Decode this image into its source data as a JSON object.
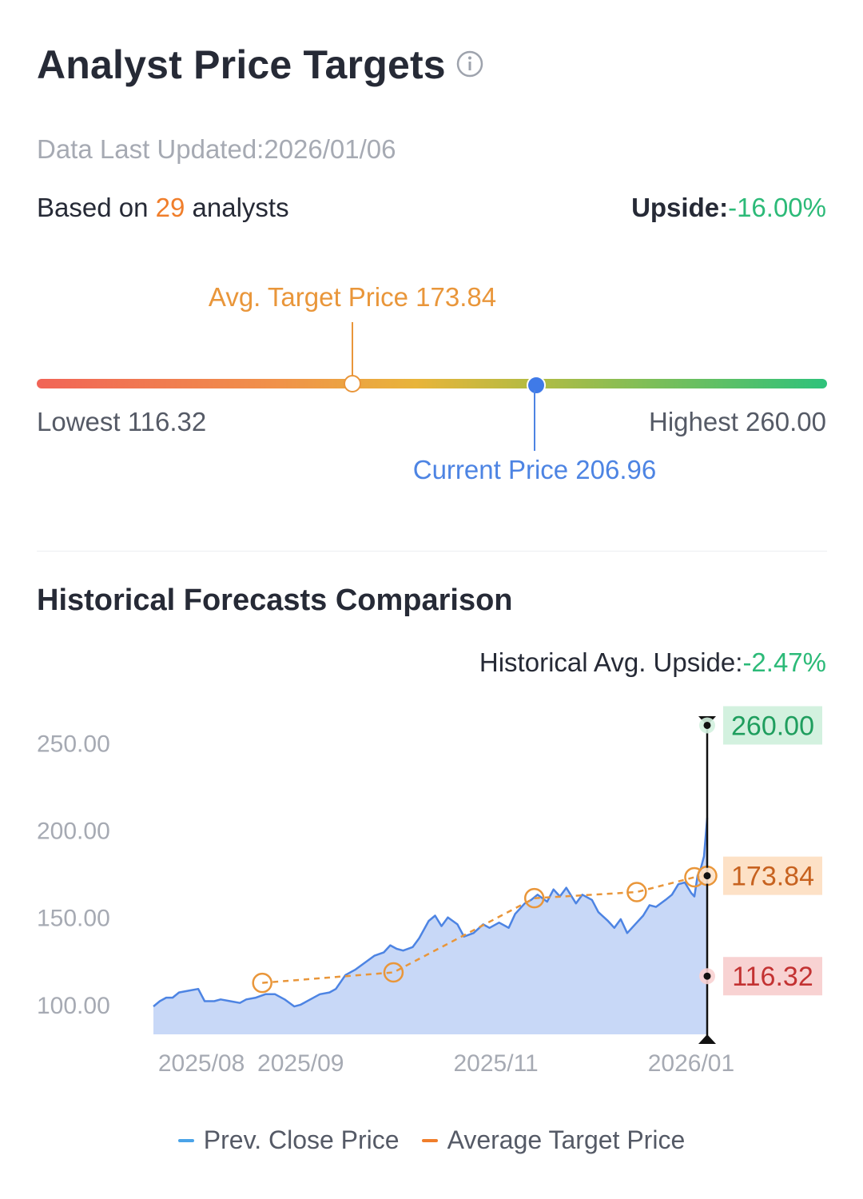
{
  "header": {
    "title": "Analyst Price Targets",
    "info_icon": "info-circle-icon",
    "last_updated": "Data Last Updated:2026/01/06",
    "based_prefix": "Based on ",
    "analyst_count": "29",
    "based_suffix": " analysts",
    "upside_label": "Upside:",
    "upside_value": "-16.00%"
  },
  "range": {
    "avg_label": "Avg. Target Price 173.84",
    "lowest_label": "Lowest 116.32",
    "highest_label": "Highest 260.00",
    "current_label": "Current Price 206.96",
    "low": 116.32,
    "high": 260.0,
    "avg": 173.84,
    "current": 206.96,
    "colors": {
      "low": "#f16457",
      "mid": "#e8b43a",
      "high": "#2ec27b",
      "avg": "#e9963a",
      "current": "#3f7ae8"
    }
  },
  "historical": {
    "title": "Historical Forecasts Comparison",
    "avg_upside_label": "Historical Avg. Upside:",
    "avg_upside_value": "-2.47%"
  },
  "chart_data": {
    "type": "area",
    "y_ticks": [
      "250.00",
      "200.00",
      "150.00",
      "100.00"
    ],
    "y_tick_values": [
      250,
      200,
      150,
      100
    ],
    "ylim": [
      83,
      268
    ],
    "x_ticks": [
      "2025/08",
      "2025/09",
      "2025/11",
      "2026/01"
    ],
    "x_tick_dates": [
      "2025-08-01",
      "2025-09-01",
      "2025-11-01",
      "2026-01-01"
    ],
    "xlim": [
      "2025-07-17",
      "2026-01-06"
    ],
    "series": [
      {
        "name": "Prev. Close Price",
        "color": "#4d84e3",
        "fill": "#c8d8f7",
        "points": [
          [
            "2025-07-17",
            99
          ],
          [
            "2025-07-19",
            102
          ],
          [
            "2025-07-21",
            104
          ],
          [
            "2025-07-23",
            104
          ],
          [
            "2025-07-25",
            107
          ],
          [
            "2025-07-28",
            108
          ],
          [
            "2025-07-31",
            109
          ],
          [
            "2025-08-02",
            102
          ],
          [
            "2025-08-05",
            102
          ],
          [
            "2025-08-07",
            103
          ],
          [
            "2025-08-10",
            102
          ],
          [
            "2025-08-13",
            101
          ],
          [
            "2025-08-15",
            103
          ],
          [
            "2025-08-18",
            104
          ],
          [
            "2025-08-21",
            106
          ],
          [
            "2025-08-24",
            106
          ],
          [
            "2025-08-27",
            103
          ],
          [
            "2025-08-30",
            99
          ],
          [
            "2025-09-01",
            100
          ],
          [
            "2025-09-04",
            103
          ],
          [
            "2025-09-07",
            106
          ],
          [
            "2025-09-10",
            107
          ],
          [
            "2025-09-12",
            109
          ],
          [
            "2025-09-15",
            117
          ],
          [
            "2025-09-18",
            120
          ],
          [
            "2025-09-21",
            124
          ],
          [
            "2025-09-24",
            128
          ],
          [
            "2025-09-27",
            130
          ],
          [
            "2025-09-29",
            134
          ],
          [
            "2025-10-01",
            132
          ],
          [
            "2025-10-03",
            131
          ],
          [
            "2025-10-06",
            133
          ],
          [
            "2025-10-08",
            138
          ],
          [
            "2025-10-11",
            148
          ],
          [
            "2025-10-13",
            151
          ],
          [
            "2025-10-15",
            145
          ],
          [
            "2025-10-17",
            150
          ],
          [
            "2025-10-20",
            146
          ],
          [
            "2025-10-22",
            139
          ],
          [
            "2025-10-25",
            141
          ],
          [
            "2025-10-28",
            146
          ],
          [
            "2025-10-30",
            144
          ],
          [
            "2025-11-02",
            147
          ],
          [
            "2025-11-05",
            144
          ],
          [
            "2025-11-07",
            152
          ],
          [
            "2025-11-10",
            158
          ],
          [
            "2025-11-12",
            160
          ],
          [
            "2025-11-14",
            163
          ],
          [
            "2025-11-17",
            159
          ],
          [
            "2025-11-19",
            166
          ],
          [
            "2025-11-21",
            162
          ],
          [
            "2025-11-23",
            167
          ],
          [
            "2025-11-26",
            158
          ],
          [
            "2025-11-28",
            163
          ],
          [
            "2025-12-01",
            160
          ],
          [
            "2025-12-03",
            153
          ],
          [
            "2025-12-06",
            148
          ],
          [
            "2025-12-08",
            144
          ],
          [
            "2025-12-10",
            149
          ],
          [
            "2025-12-12",
            141
          ],
          [
            "2025-12-15",
            147
          ],
          [
            "2025-12-17",
            151
          ],
          [
            "2025-12-19",
            157
          ],
          [
            "2025-12-21",
            156
          ],
          [
            "2025-12-24",
            160
          ],
          [
            "2025-12-26",
            163
          ],
          [
            "2025-12-28",
            169
          ],
          [
            "2025-12-30",
            170
          ],
          [
            "2026-01-01",
            164
          ],
          [
            "2026-01-02",
            162
          ],
          [
            "2026-01-03",
            174
          ],
          [
            "2026-01-04",
            178
          ],
          [
            "2026-01-05",
            185
          ],
          [
            "2026-01-06",
            206.96
          ]
        ]
      },
      {
        "name": "Average Target Price",
        "color": "#e9963a",
        "points": [
          [
            "2025-08-20",
            112.5
          ],
          [
            "2025-09-30",
            118.5
          ],
          [
            "2025-11-13",
            161
          ],
          [
            "2025-12-15",
            164.5
          ],
          [
            "2026-01-02",
            173
          ],
          [
            "2026-01-06",
            173.84
          ]
        ]
      }
    ],
    "forecast_markers": [
      {
        "label": "260.00",
        "value": 260.0,
        "color": "#1f9e5e",
        "bg": "#d3f1df"
      },
      {
        "label": "173.84",
        "value": 173.84,
        "color": "#c7621f",
        "bg": "#fde1c6"
      },
      {
        "label": "116.32",
        "value": 116.32,
        "color": "#c33232",
        "bg": "#f8d2d2"
      }
    ],
    "legend": [
      {
        "label": "Prev. Close Price",
        "color": "#4aa3e8"
      },
      {
        "label": "Average Target Price",
        "color": "#f07e2b"
      }
    ]
  }
}
